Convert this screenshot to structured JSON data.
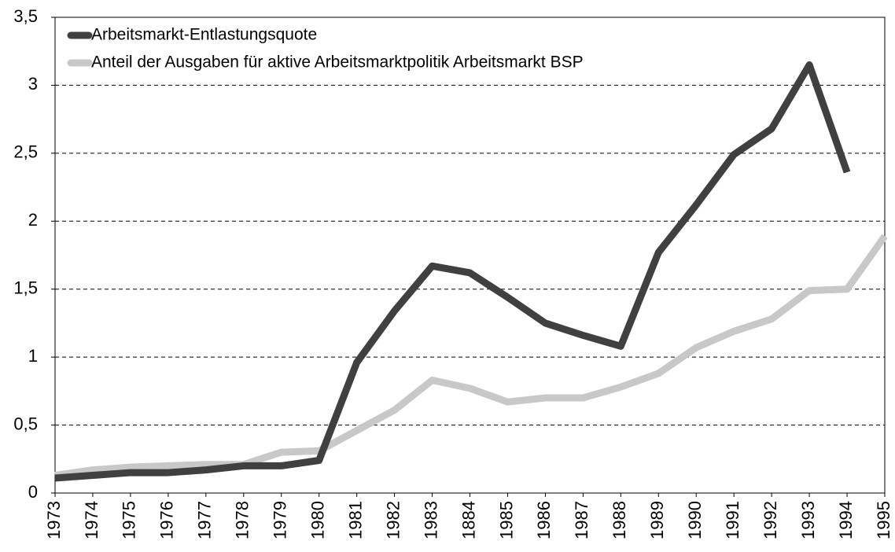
{
  "chart_data": {
    "type": "line",
    "categories": [
      "1973",
      "1974",
      "1975",
      "1976",
      "1977",
      "1978",
      "1979",
      "1980",
      "1981",
      "1982",
      "1983",
      "1884",
      "1985",
      "1986",
      "1987",
      "1988",
      "1989",
      "1990",
      "1991",
      "1992",
      "1993",
      "1994",
      "1995"
    ],
    "series": [
      {
        "name": "Arbeitsmarkt-Entlastungsquote",
        "color": "#404040",
        "values": [
          0.11,
          0.13,
          0.15,
          0.15,
          0.17,
          0.2,
          0.2,
          0.24,
          0.96,
          1.34,
          1.67,
          1.62,
          1.44,
          1.25,
          1.16,
          1.08,
          1.77,
          2.12,
          2.49,
          2.68,
          3.15,
          2.36,
          null
        ]
      },
      {
        "name": "Anteil der Ausgaben für aktive Arbeitsmarktpolitik Arbeitsmarkt BSP",
        "color": "#c8c8c8",
        "values": [
          0.13,
          0.17,
          0.19,
          0.2,
          0.21,
          0.21,
          0.3,
          0.31,
          0.46,
          0.61,
          0.83,
          0.77,
          0.67,
          0.7,
          0.7,
          0.78,
          0.88,
          1.07,
          1.19,
          1.28,
          1.49,
          1.5,
          1.89
        ]
      }
    ],
    "ylim": [
      0,
      3.5
    ],
    "yticks": [
      0,
      {
        "value": 0.5,
        "label": "0,5"
      },
      1,
      {
        "value": 1.5,
        "label": "1,5"
      },
      2,
      {
        "value": 2.5,
        "label": "2,5"
      },
      3,
      {
        "value": 3.5,
        "label": "3,5"
      }
    ],
    "grid": true,
    "legend": "top-left"
  }
}
